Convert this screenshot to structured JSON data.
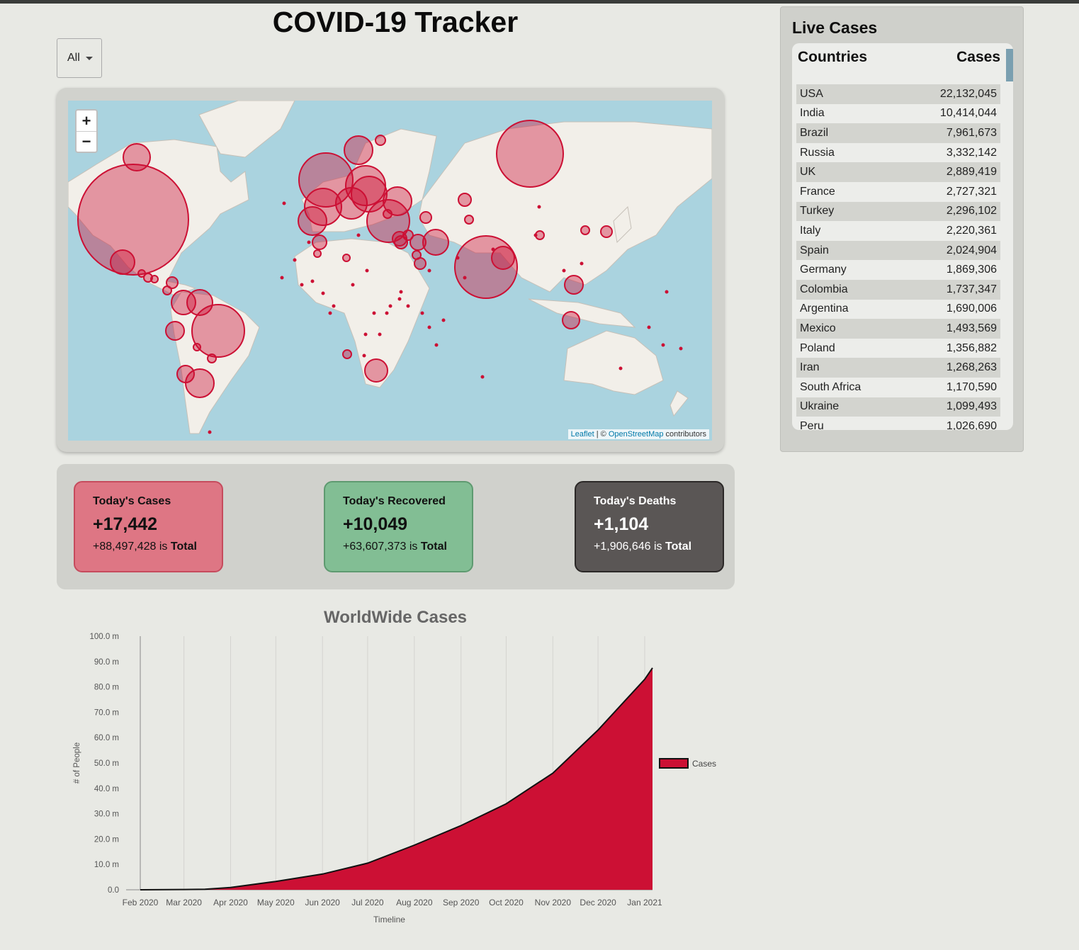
{
  "title": "COVID-19 Tracker",
  "filter": {
    "selected": "All"
  },
  "map": {
    "zoom_in": "+",
    "zoom_out": "−",
    "attribution_leaflet": "Leaflet",
    "attribution_sep": " | © ",
    "attribution_osm": "OpenStreetMap",
    "attribution_rest": " contributors"
  },
  "stats": {
    "cases": {
      "label": "Today's Cases",
      "value": "+17,442",
      "total": "+88,497,428",
      "is": "is",
      "total_label": "Total"
    },
    "recovered": {
      "label": "Today's Recovered",
      "value": "+10,049",
      "total": "+63,607,373",
      "is": "is",
      "total_label": "Total"
    },
    "deaths": {
      "label": "Today's Deaths",
      "value": "+1,104",
      "total": "+1,906,646",
      "is": "is",
      "total_label": "Total"
    }
  },
  "live": {
    "heading": "Live Cases",
    "col_country": "Countries",
    "col_cases": "Cases",
    "rows": [
      {
        "country": "USA",
        "cases": "22,132,045"
      },
      {
        "country": "India",
        "cases": "10,414,044"
      },
      {
        "country": "Brazil",
        "cases": "7,961,673"
      },
      {
        "country": "Russia",
        "cases": "3,332,142"
      },
      {
        "country": "UK",
        "cases": "2,889,419"
      },
      {
        "country": "France",
        "cases": "2,727,321"
      },
      {
        "country": "Turkey",
        "cases": "2,296,102"
      },
      {
        "country": "Italy",
        "cases": "2,220,361"
      },
      {
        "country": "Spain",
        "cases": "2,024,904"
      },
      {
        "country": "Germany",
        "cases": "1,869,306"
      },
      {
        "country": "Colombia",
        "cases": "1,737,347"
      },
      {
        "country": "Argentina",
        "cases": "1,690,006"
      },
      {
        "country": "Mexico",
        "cases": "1,493,569"
      },
      {
        "country": "Poland",
        "cases": "1,356,882"
      },
      {
        "country": "Iran",
        "cases": "1,268,263"
      },
      {
        "country": "South Africa",
        "cases": "1,170,590"
      },
      {
        "country": "Ukraine",
        "cases": "1,099,493"
      },
      {
        "country": "Peru",
        "cases": "1,026,690"
      }
    ]
  },
  "colors": {
    "accent": "#cc1034",
    "recovered": "#82be94",
    "deaths": "#5a5655",
    "cases_card": "#de7684"
  },
  "chart_data": {
    "type": "area",
    "title": "WorldWide Cases",
    "xlabel": "Timeline",
    "ylabel": "# of People",
    "legend": "Cases",
    "legend_position": "right",
    "ylim": [
      0,
      100000000
    ],
    "yticks": [
      "0.0",
      "10.0 m",
      "20.0 m",
      "30.0 m",
      "40.0 m",
      "50.0 m",
      "60.0 m",
      "70.0 m",
      "80.0 m",
      "90.0 m",
      "100.0 m"
    ],
    "xticks": [
      "Feb 2020",
      "Mar 2020",
      "Apr 2020",
      "May 2020",
      "Jun 2020",
      "Jul 2020",
      "Aug 2020",
      "Sep 2020",
      "Oct 2020",
      "Nov 2020",
      "Dec 2020",
      "Jan 2021"
    ],
    "x": [
      "2020-02-01",
      "2020-03-01",
      "2020-03-15",
      "2020-04-01",
      "2020-05-01",
      "2020-06-01",
      "2020-07-01",
      "2020-08-01",
      "2020-09-01",
      "2020-10-01",
      "2020-11-01",
      "2020-12-01",
      "2021-01-01",
      "2021-01-06"
    ],
    "values": [
      0,
      100000,
      200000,
      900000,
      3300000,
      6200000,
      10500000,
      17600000,
      25300000,
      33900000,
      46000000,
      63000000,
      83000000,
      87500000
    ],
    "grid": "vertical"
  }
}
